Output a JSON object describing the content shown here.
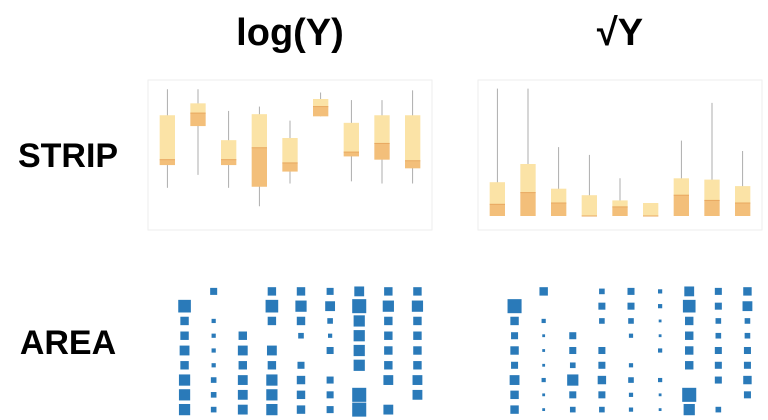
{
  "headings": {
    "columns": [
      "log(Y)",
      "√Y"
    ],
    "rows": [
      "STRIP",
      "AREA"
    ]
  },
  "chart_data": [
    {
      "type": "box",
      "ylim": [
        -20,
        100
      ],
      "color": "#fbe3a6",
      "median_color": "#f3bf7a",
      "boxes": [
        {
          "low": 6,
          "q1": 27,
          "median": 32,
          "q3": 73,
          "high": 97
        },
        {
          "low": 18,
          "q1": 63,
          "median": 75,
          "q3": 84,
          "high": 97
        },
        {
          "low": 6,
          "q1": 27,
          "median": 32,
          "q3": 50,
          "high": 77
        },
        {
          "low": -11,
          "q1": 7,
          "median": 43,
          "q3": 74,
          "high": 81
        },
        {
          "low": 10,
          "q1": 21,
          "median": 29,
          "q3": 52,
          "high": 68
        },
        {
          "low": 72,
          "q1": 72,
          "median": 81,
          "q3": 88,
          "high": 94
        },
        {
          "low": 12,
          "q1": 35,
          "median": 39,
          "q3": 66,
          "high": 87
        },
        {
          "low": 10,
          "q1": 32,
          "median": 47,
          "q3": 73,
          "high": 87
        },
        {
          "low": 10,
          "q1": 24,
          "median": 31,
          "q3": 73,
          "high": 96
        }
      ]
    },
    {
      "type": "box",
      "ylim": [
        0,
        100
      ],
      "color": "#fbe3a6",
      "median_color": "#f3bf7a",
      "boxes": [
        {
          "low": 0,
          "q1": 0,
          "median": 9,
          "q3": 26,
          "high": 98
        },
        {
          "low": 0,
          "q1": 0,
          "median": 18,
          "q3": 40,
          "high": 98
        },
        {
          "low": 0,
          "q1": 0,
          "median": 10,
          "q3": 21,
          "high": 53
        },
        {
          "low": 0,
          "q1": 0,
          "median": 0,
          "q3": 16,
          "high": 47
        },
        {
          "low": 0,
          "q1": 0,
          "median": 7,
          "q3": 12,
          "high": 29
        },
        {
          "low": 0,
          "q1": 0,
          "median": 0,
          "q3": 10,
          "high": 10
        },
        {
          "low": 0,
          "q1": 0,
          "median": 16,
          "q3": 29,
          "high": 58
        },
        {
          "low": 0,
          "q1": 0,
          "median": 12,
          "q3": 28,
          "high": 87
        },
        {
          "low": 0,
          "q1": 0,
          "median": 10,
          "q3": 23,
          "high": 50
        }
      ]
    },
    {
      "type": "area",
      "max": 10,
      "color": "#2a7ab9",
      "values": [
        [
          0,
          5,
          0,
          6,
          6,
          5,
          7,
          6,
          6
        ],
        [
          9,
          0,
          0,
          9,
          8,
          7,
          10,
          8,
          8
        ],
        [
          6,
          3,
          0,
          6,
          6,
          4,
          8,
          6,
          6
        ],
        [
          6,
          3,
          6,
          0,
          4,
          3,
          8,
          6,
          6
        ],
        [
          7,
          3,
          7,
          7,
          0,
          5,
          8,
          6,
          6
        ],
        [
          6,
          3,
          6,
          6,
          5,
          0,
          8,
          6,
          6
        ],
        [
          8,
          4,
          7,
          8,
          6,
          5,
          0,
          7,
          7
        ],
        [
          8,
          4,
          7,
          8,
          6,
          5,
          10,
          0,
          7
        ],
        [
          8,
          4,
          7,
          8,
          6,
          5,
          10,
          7,
          0
        ]
      ]
    },
    {
      "type": "area",
      "max": 10,
      "color": "#2a7ab9",
      "values": [
        [
          0,
          6,
          0,
          4,
          5,
          3,
          7,
          5,
          6
        ],
        [
          10,
          0,
          0,
          5,
          5,
          3,
          9,
          5,
          7
        ],
        [
          6,
          3,
          0,
          4,
          4,
          2,
          6,
          4,
          4
        ],
        [
          5,
          2,
          5,
          0,
          3,
          2,
          6,
          4,
          4
        ],
        [
          6,
          2,
          5,
          5,
          0,
          3,
          6,
          5,
          5
        ],
        [
          5,
          2,
          4,
          5,
          3,
          0,
          6,
          5,
          5
        ],
        [
          7,
          3,
          8,
          6,
          4,
          3,
          0,
          5,
          6
        ],
        [
          6,
          2,
          5,
          5,
          3,
          2,
          10,
          0,
          5
        ],
        [
          6,
          2,
          4,
          4,
          3,
          2,
          8,
          4,
          0
        ]
      ]
    }
  ]
}
